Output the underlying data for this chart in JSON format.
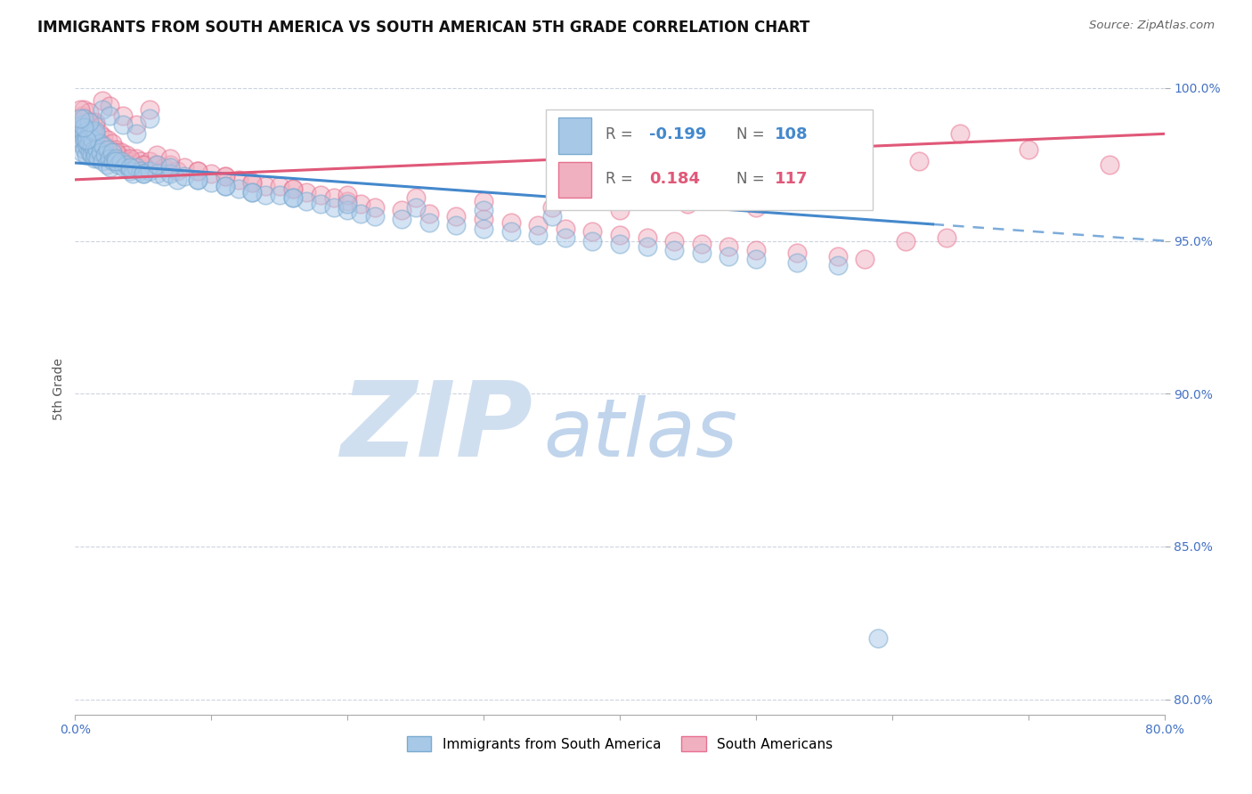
{
  "title": "IMMIGRANTS FROM SOUTH AMERICA VS SOUTH AMERICAN 5TH GRADE CORRELATION CHART",
  "source_text": "Source: ZipAtlas.com",
  "ylabel": "5th Grade",
  "xlim": [
    0.0,
    0.8
  ],
  "ylim": [
    0.795,
    1.008
  ],
  "xtick_labels": [
    "0.0%",
    "",
    "",
    "",
    "",
    "",
    "",
    "",
    "80.0%"
  ],
  "xtick_vals": [
    0.0,
    0.1,
    0.2,
    0.3,
    0.4,
    0.5,
    0.6,
    0.7,
    0.8
  ],
  "ytick_labels": [
    "80.0%",
    "85.0%",
    "90.0%",
    "95.0%",
    "100.0%"
  ],
  "ytick_vals": [
    0.8,
    0.85,
    0.9,
    0.95,
    1.0
  ],
  "blue_R": -0.199,
  "blue_N": 108,
  "pink_R": 0.184,
  "pink_N": 117,
  "blue_color": "#a8c8e8",
  "pink_color": "#f0b0c0",
  "blue_edge_color": "#7aaad0",
  "pink_edge_color": "#e87090",
  "blue_line_color": "#4488cc",
  "pink_line_color": "#e05878",
  "watermark_zip_color": "#d0dff0",
  "watermark_atlas_color": "#c0d4ec",
  "title_fontsize": 12,
  "axis_label_fontsize": 10,
  "tick_fontsize": 10,
  "blue_line_y0": 0.9755,
  "blue_line_y1": 0.95,
  "pink_line_y0": 0.97,
  "pink_line_y1": 0.985,
  "blue_scatter_x": [
    0.002,
    0.003,
    0.004,
    0.005,
    0.005,
    0.006,
    0.006,
    0.007,
    0.007,
    0.008,
    0.008,
    0.009,
    0.009,
    0.01,
    0.01,
    0.011,
    0.011,
    0.012,
    0.012,
    0.013,
    0.013,
    0.014,
    0.014,
    0.015,
    0.015,
    0.016,
    0.017,
    0.018,
    0.019,
    0.02,
    0.021,
    0.022,
    0.023,
    0.024,
    0.025,
    0.026,
    0.027,
    0.028,
    0.03,
    0.032,
    0.034,
    0.036,
    0.038,
    0.04,
    0.042,
    0.045,
    0.048,
    0.05,
    0.055,
    0.06,
    0.065,
    0.07,
    0.075,
    0.08,
    0.09,
    0.1,
    0.11,
    0.12,
    0.13,
    0.14,
    0.15,
    0.16,
    0.17,
    0.18,
    0.19,
    0.2,
    0.21,
    0.22,
    0.24,
    0.26,
    0.28,
    0.3,
    0.32,
    0.34,
    0.36,
    0.38,
    0.4,
    0.42,
    0.44,
    0.46,
    0.48,
    0.5,
    0.53,
    0.56,
    0.02,
    0.025,
    0.035,
    0.045,
    0.055,
    0.015,
    0.01,
    0.008,
    0.006,
    0.004,
    0.03,
    0.04,
    0.05,
    0.06,
    0.07,
    0.09,
    0.11,
    0.13,
    0.16,
    0.2,
    0.25,
    0.3,
    0.35,
    0.59
  ],
  "blue_scatter_y": [
    0.984,
    0.987,
    0.982,
    0.988,
    0.979,
    0.99,
    0.985,
    0.983,
    0.98,
    0.986,
    0.978,
    0.984,
    0.981,
    0.985,
    0.982,
    0.979,
    0.984,
    0.981,
    0.978,
    0.986,
    0.983,
    0.98,
    0.977,
    0.985,
    0.978,
    0.98,
    0.977,
    0.982,
    0.979,
    0.976,
    0.981,
    0.978,
    0.975,
    0.98,
    0.977,
    0.974,
    0.979,
    0.976,
    0.977,
    0.975,
    0.976,
    0.974,
    0.975,
    0.973,
    0.972,
    0.974,
    0.973,
    0.972,
    0.973,
    0.972,
    0.971,
    0.972,
    0.97,
    0.971,
    0.97,
    0.969,
    0.968,
    0.967,
    0.966,
    0.965,
    0.965,
    0.964,
    0.963,
    0.962,
    0.961,
    0.96,
    0.959,
    0.958,
    0.957,
    0.956,
    0.955,
    0.954,
    0.953,
    0.952,
    0.951,
    0.95,
    0.949,
    0.948,
    0.947,
    0.946,
    0.945,
    0.944,
    0.943,
    0.942,
    0.993,
    0.991,
    0.988,
    0.985,
    0.99,
    0.986,
    0.989,
    0.983,
    0.987,
    0.99,
    0.976,
    0.974,
    0.972,
    0.975,
    0.974,
    0.97,
    0.968,
    0.966,
    0.964,
    0.962,
    0.961,
    0.96,
    0.958,
    0.82
  ],
  "pink_scatter_x": [
    0.002,
    0.003,
    0.004,
    0.005,
    0.005,
    0.006,
    0.006,
    0.007,
    0.007,
    0.008,
    0.008,
    0.009,
    0.009,
    0.01,
    0.01,
    0.011,
    0.011,
    0.012,
    0.012,
    0.013,
    0.013,
    0.014,
    0.014,
    0.015,
    0.015,
    0.016,
    0.017,
    0.018,
    0.019,
    0.02,
    0.021,
    0.022,
    0.023,
    0.024,
    0.025,
    0.026,
    0.027,
    0.028,
    0.03,
    0.032,
    0.034,
    0.036,
    0.038,
    0.04,
    0.042,
    0.045,
    0.048,
    0.05,
    0.055,
    0.06,
    0.065,
    0.07,
    0.075,
    0.08,
    0.09,
    0.1,
    0.11,
    0.12,
    0.13,
    0.14,
    0.15,
    0.16,
    0.17,
    0.18,
    0.19,
    0.2,
    0.21,
    0.22,
    0.24,
    0.26,
    0.28,
    0.3,
    0.32,
    0.34,
    0.36,
    0.38,
    0.4,
    0.42,
    0.44,
    0.46,
    0.48,
    0.5,
    0.53,
    0.56,
    0.58,
    0.61,
    0.64,
    0.02,
    0.025,
    0.035,
    0.045,
    0.055,
    0.015,
    0.01,
    0.008,
    0.006,
    0.004,
    0.03,
    0.04,
    0.05,
    0.06,
    0.07,
    0.09,
    0.11,
    0.13,
    0.16,
    0.2,
    0.25,
    0.3,
    0.35,
    0.4,
    0.45,
    0.5,
    0.65,
    0.7,
    0.76,
    0.62
  ],
  "pink_scatter_y": [
    0.987,
    0.99,
    0.985,
    0.991,
    0.982,
    0.993,
    0.988,
    0.986,
    0.983,
    0.989,
    0.981,
    0.987,
    0.984,
    0.988,
    0.985,
    0.982,
    0.987,
    0.984,
    0.981,
    0.989,
    0.986,
    0.983,
    0.98,
    0.988,
    0.981,
    0.983,
    0.98,
    0.985,
    0.982,
    0.979,
    0.984,
    0.981,
    0.978,
    0.983,
    0.98,
    0.977,
    0.982,
    0.979,
    0.98,
    0.978,
    0.979,
    0.977,
    0.978,
    0.976,
    0.975,
    0.977,
    0.976,
    0.975,
    0.976,
    0.975,
    0.974,
    0.975,
    0.973,
    0.974,
    0.973,
    0.972,
    0.971,
    0.97,
    0.969,
    0.968,
    0.968,
    0.967,
    0.966,
    0.965,
    0.964,
    0.963,
    0.962,
    0.961,
    0.96,
    0.959,
    0.958,
    0.957,
    0.956,
    0.955,
    0.954,
    0.953,
    0.952,
    0.951,
    0.95,
    0.949,
    0.948,
    0.947,
    0.946,
    0.945,
    0.944,
    0.95,
    0.951,
    0.996,
    0.994,
    0.991,
    0.988,
    0.993,
    0.989,
    0.992,
    0.986,
    0.99,
    0.993,
    0.979,
    0.977,
    0.975,
    0.978,
    0.977,
    0.973,
    0.971,
    0.969,
    0.967,
    0.965,
    0.964,
    0.963,
    0.961,
    0.96,
    0.962,
    0.961,
    0.985,
    0.98,
    0.975,
    0.976
  ]
}
